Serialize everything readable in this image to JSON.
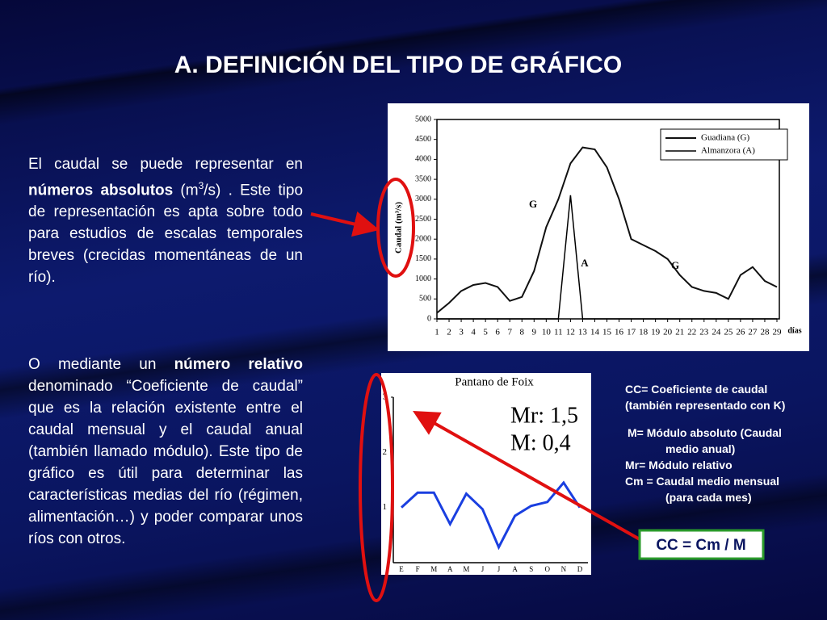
{
  "title": "A. DEFINICIÓN DEL TIPO DE GRÁFICO",
  "paragraphs": [
    [
      "El caudal se puede representar en ",
      "números absolutos",
      " (m",
      "3",
      "/s) . Este tipo de representación es apta sobre todo para estudios de escalas temporales breves (crecidas momentáneas de un río)."
    ],
    [
      "O mediante un ",
      "número relativo",
      " denominado “Coeficiente de caudal” que es la relación existente entre el caudal mensual y el caudal anual (también llamado módulo). Este tipo de gráfico es útil para determinar las características medias del río (régimen, alimentación…) y poder comparar unos ríos con otros."
    ]
  ],
  "notes": [
    "CC= Coeficiente de caudal",
    "(también representado con K)",
    "M= Módulo absoluto (Caudal",
    "medio anual)",
    "Mr= Módulo relativo",
    "Cm = Caudal medio mensual",
    "(para cada mes)"
  ],
  "formula": "CC = Cm / M",
  "chart_data": [
    {
      "type": "line",
      "y_label": "Caudal (m³/s)",
      "x_label": "días",
      "x": [
        1,
        2,
        3,
        4,
        5,
        6,
        7,
        8,
        9,
        10,
        11,
        12,
        13,
        14,
        15,
        16,
        17,
        18,
        19,
        20,
        21,
        22,
        23,
        24,
        25,
        26,
        27,
        28,
        29
      ],
      "xlim": [
        1,
        29
      ],
      "xticks": [
        1,
        2,
        3,
        4,
        5,
        6,
        7,
        8,
        9,
        10,
        11,
        12,
        13,
        14,
        15,
        16,
        17,
        18,
        19,
        20,
        21,
        22,
        23,
        24,
        25,
        26,
        27,
        28,
        29
      ],
      "ylim": [
        0,
        5000
      ],
      "yticks": [
        0,
        500,
        1000,
        1500,
        2000,
        2500,
        3000,
        3500,
        4000,
        4500,
        5000
      ],
      "grid": false,
      "legend": "top-right",
      "series": [
        {
          "name": "Guadiana (G)",
          "color": "#111111",
          "values": [
            150,
            400,
            700,
            850,
            900,
            800,
            450,
            550,
            1200,
            2300,
            3000,
            3900,
            4300,
            4250,
            3800,
            3000,
            2000,
            1850,
            1700,
            1500,
            1100,
            800,
            700,
            650,
            500,
            1100,
            1300,
            950,
            800
          ]
        },
        {
          "name": "Almanzora (A)",
          "color": "#000000",
          "values": [
            0,
            0,
            0,
            0,
            0,
            0,
            0,
            0,
            0,
            0,
            0,
            3100,
            0,
            0,
            0,
            0,
            0,
            0,
            0,
            0,
            0,
            0,
            0,
            0,
            0,
            0,
            0,
            0,
            0
          ]
        }
      ],
      "annotations": [
        "G",
        "A",
        "G"
      ]
    },
    {
      "type": "line",
      "title": "Pantano de Foix",
      "categories": [
        "E",
        "F",
        "M",
        "A",
        "M",
        "J",
        "J",
        "A",
        "S",
        "O",
        "N",
        "D"
      ],
      "ylim": [
        0,
        3
      ],
      "yticks": [
        1,
        2,
        3
      ],
      "grid": false,
      "series": [
        {
          "color": "#1a3fe0",
          "values": [
            1.0,
            1.27,
            1.27,
            0.7,
            1.25,
            0.97,
            0.28,
            0.85,
            1.03,
            1.1,
            1.45,
            1.0
          ]
        }
      ],
      "annotations": [
        "Mr: 1,5",
        "M: 0,4"
      ]
    }
  ]
}
